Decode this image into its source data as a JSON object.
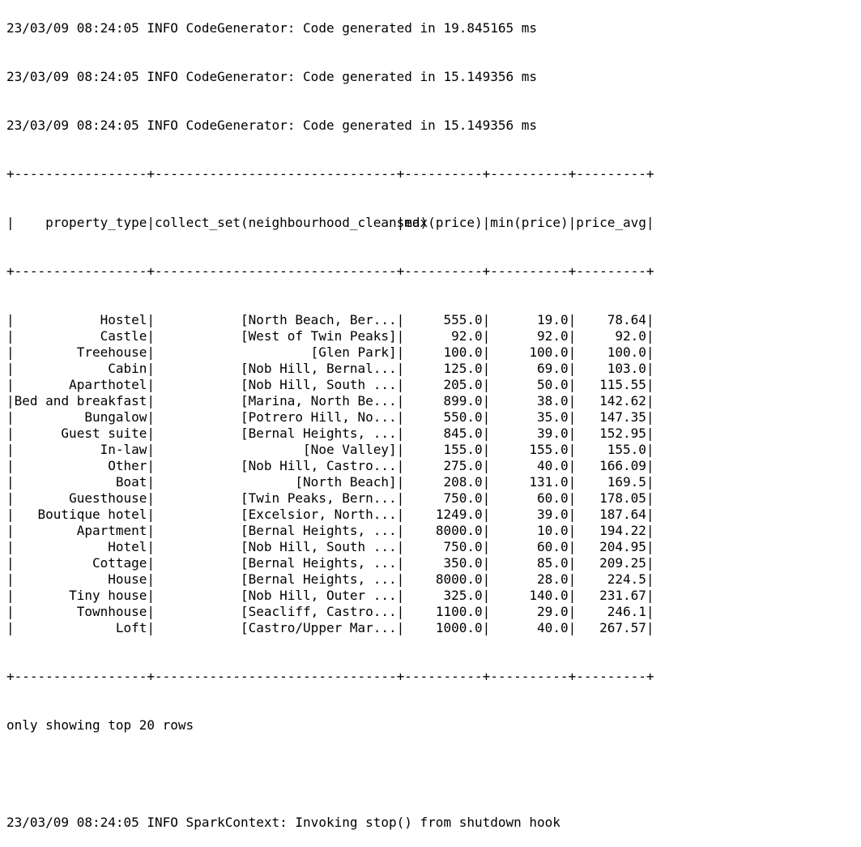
{
  "terminal": {
    "log_top": [
      "23/03/09 08:24:05 INFO CodeGenerator: Code generated in 19.845165 ms",
      "23/03/09 08:24:05 INFO CodeGenerator: Code generated in 15.149356 ms"
    ],
    "table": {
      "border": "+-----------------+-------------------------------+----------+----------+---------+",
      "headers": [
        "property_type",
        "collect_set(neighbourhood_cleansed)",
        "max(price)",
        "min(price)",
        "price_avg"
      ],
      "rows": [
        [
          "Hostel",
          "[North Beach, Ber...",
          "555.0",
          "19.0",
          "78.64"
        ],
        [
          "Castle",
          "[West of Twin Peaks]",
          "92.0",
          "92.0",
          "92.0"
        ],
        [
          "Treehouse",
          "[Glen Park]",
          "100.0",
          "100.0",
          "100.0"
        ],
        [
          "Cabin",
          "[Nob Hill, Bernal...",
          "125.0",
          "69.0",
          "103.0"
        ],
        [
          "Aparthotel",
          "[Nob Hill, South ...",
          "205.0",
          "50.0",
          "115.55"
        ],
        [
          "Bed and breakfast",
          "[Marina, North Be...",
          "899.0",
          "38.0",
          "142.62"
        ],
        [
          "Bungalow",
          "[Potrero Hill, No...",
          "550.0",
          "35.0",
          "147.35"
        ],
        [
          "Guest suite",
          "[Bernal Heights, ...",
          "845.0",
          "39.0",
          "152.95"
        ],
        [
          "In-law",
          "[Noe Valley]",
          "155.0",
          "155.0",
          "155.0"
        ],
        [
          "Other",
          "[Nob Hill, Castro...",
          "275.0",
          "40.0",
          "166.09"
        ],
        [
          "Boat",
          "[North Beach]",
          "208.0",
          "131.0",
          "169.5"
        ],
        [
          "Guesthouse",
          "[Twin Peaks, Bern...",
          "750.0",
          "60.0",
          "178.05"
        ],
        [
          "Boutique hotel",
          "[Excelsior, North...",
          "1249.0",
          "39.0",
          "187.64"
        ],
        [
          "Apartment",
          "[Bernal Heights, ...",
          "8000.0",
          "10.0",
          "194.22"
        ],
        [
          "Hotel",
          "[Nob Hill, South ...",
          "750.0",
          "60.0",
          "204.95"
        ],
        [
          "Cottage",
          "[Bernal Heights, ...",
          "350.0",
          "85.0",
          "209.25"
        ],
        [
          "House",
          "[Bernal Heights, ...",
          "8000.0",
          "28.0",
          "224.5"
        ],
        [
          "Tiny house",
          "[Nob Hill, Outer ...",
          "325.0",
          "140.0",
          "231.67"
        ],
        [
          "Townhouse",
          "[Seacliff, Castro...",
          "1100.0",
          "29.0",
          "246.1"
        ],
        [
          "Loft",
          "[Castro/Upper Mar...",
          "1000.0",
          "40.0",
          "267.57"
        ]
      ]
    },
    "footer_note": "only showing top 20 rows",
    "log_bottom": "23/03/09 08:24:05 INFO SparkContext: Invoking stop() from shutdown hook"
  }
}
